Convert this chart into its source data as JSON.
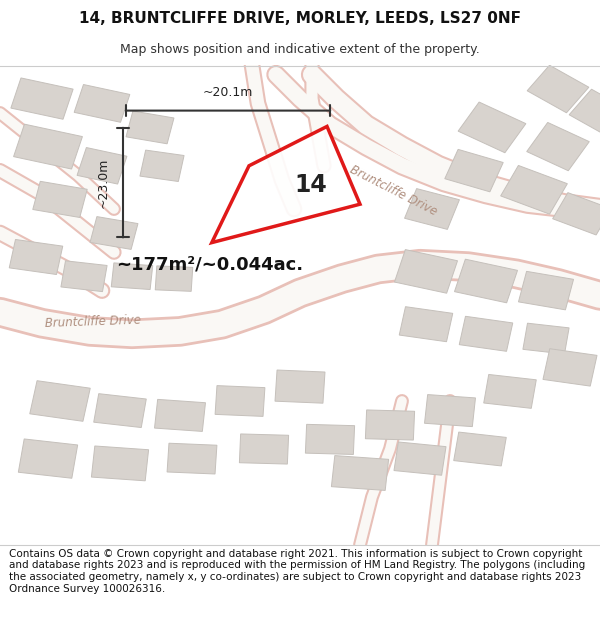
{
  "title": "14, BRUNTCLIFFE DRIVE, MORLEY, LEEDS, LS27 0NF",
  "subtitle": "Map shows position and indicative extent of the property.",
  "footer": "Contains OS data © Crown copyright and database right 2021. This information is subject to Crown copyright and database rights 2023 and is reproduced with the permission of HM Land Registry. The polygons (including the associated geometry, namely x, y co-ordinates) are subject to Crown copyright and database rights 2023 Ordnance Survey 100026316.",
  "map_bg": "#f5f2ee",
  "road_color": "#e8c0b8",
  "road_fill": "#faf8f5",
  "building_fill": "#d8d3ce",
  "building_edge": "#c5c0bb",
  "plot_color": "#dd0000",
  "area_text": "~177m²/~0.044ac.",
  "number_text": "14",
  "dim_width": "~20.1m",
  "dim_height": "~23.0m",
  "road_label_left": "Bruntcliffe Drive",
  "road_label_right": "Bruntcliffe Drive",
  "title_fontsize": 11,
  "subtitle_fontsize": 9,
  "footer_fontsize": 7.5
}
